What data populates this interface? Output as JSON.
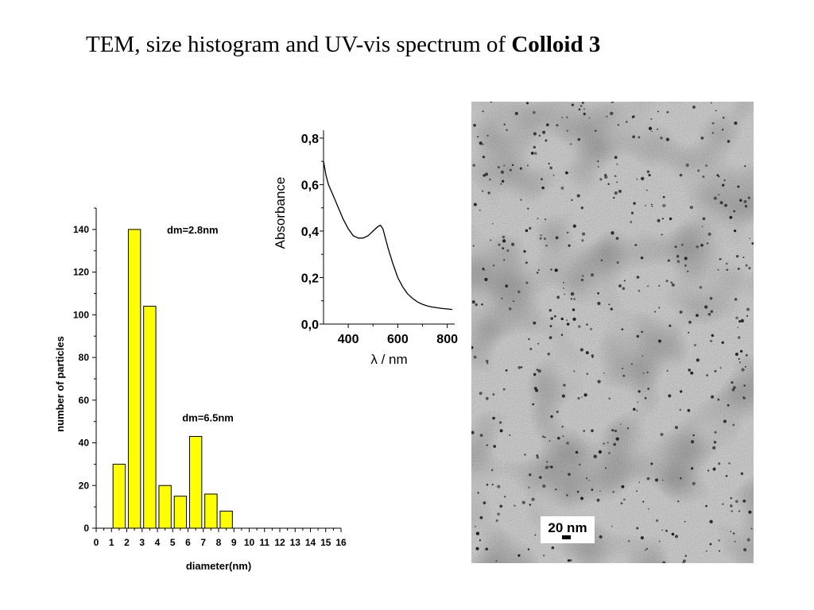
{
  "slide": {
    "title_prefix": "TEM, size histogram and UV-vis spectrum of ",
    "title_bold": "Colloid 3"
  },
  "chart_data": [
    {
      "type": "bar",
      "xlabel": "diameter(nm)",
      "ylabel": "number of particles",
      "x_ticks": [
        "0",
        "1",
        "2",
        "3",
        "4",
        "5",
        "6",
        "7",
        "8",
        "9",
        "10",
        "11",
        "12",
        "13",
        "14",
        "15",
        "16"
      ],
      "y_ticks": [
        "0",
        "20",
        "40",
        "60",
        "80",
        "100",
        "120",
        "140"
      ],
      "xlim": [
        0,
        16
      ],
      "ylim": [
        0,
        150
      ],
      "bar_color": "#ffff00",
      "bars": [
        {
          "from": 1.1,
          "to": 1.9,
          "value": 30
        },
        {
          "from": 2.1,
          "to": 2.9,
          "value": 140
        },
        {
          "from": 3.1,
          "to": 3.9,
          "value": 104
        },
        {
          "from": 4.1,
          "to": 4.9,
          "value": 20
        },
        {
          "from": 5.1,
          "to": 5.9,
          "value": 15
        },
        {
          "from": 6.1,
          "to": 6.9,
          "value": 43
        },
        {
          "from": 7.1,
          "to": 7.9,
          "value": 16
        },
        {
          "from": 8.1,
          "to": 8.9,
          "value": 8
        }
      ],
      "annotations": [
        {
          "text": "dm=2.8nm",
          "x": 6.3,
          "y": 138
        },
        {
          "text": "dm=6.5nm",
          "x": 7.3,
          "y": 50
        }
      ]
    },
    {
      "type": "line",
      "xlabel": "λ / nm",
      "ylabel": "Absorbance",
      "x_ticks": [
        400,
        600,
        800
      ],
      "y_ticks": [
        "0,0",
        "0,2",
        "0,4",
        "0,6",
        "0,8"
      ],
      "xlim": [
        300,
        830
      ],
      "ylim": [
        0,
        0.82
      ],
      "series": [
        {
          "x": [
            300,
            310,
            320,
            340,
            360,
            380,
            400,
            420,
            440,
            460,
            480,
            500,
            520,
            530,
            540,
            560,
            580,
            600,
            620,
            640,
            660,
            680,
            700,
            720,
            740,
            760,
            780,
            800,
            820
          ],
          "y": [
            0.7,
            0.64,
            0.6,
            0.55,
            0.5,
            0.45,
            0.41,
            0.38,
            0.37,
            0.37,
            0.38,
            0.4,
            0.42,
            0.425,
            0.41,
            0.33,
            0.26,
            0.2,
            0.16,
            0.13,
            0.11,
            0.095,
            0.085,
            0.078,
            0.073,
            0.07,
            0.067,
            0.065,
            0.063
          ]
        }
      ]
    }
  ],
  "tem": {
    "scale_label": "20 nm"
  }
}
